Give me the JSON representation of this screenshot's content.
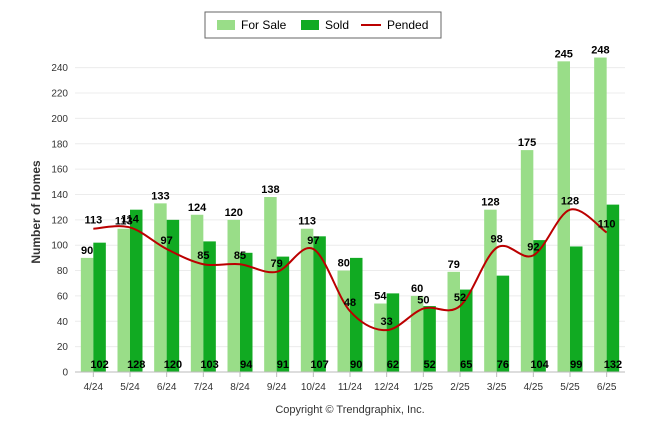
{
  "chart_data": {
    "type": "bar",
    "categories": [
      "4/24",
      "5/24",
      "6/24",
      "7/24",
      "8/24",
      "9/24",
      "10/24",
      "11/24",
      "12/24",
      "1/25",
      "2/25",
      "3/25",
      "4/25",
      "5/25",
      "6/25"
    ],
    "series": [
      {
        "name": "For Sale",
        "type": "bar",
        "color": "#99dd88",
        "values": [
          90,
          113,
          133,
          124,
          120,
          138,
          113,
          80,
          54,
          60,
          79,
          128,
          175,
          245,
          248
        ]
      },
      {
        "name": "Sold",
        "type": "bar",
        "color": "#11aa22",
        "values": [
          102,
          128,
          120,
          103,
          94,
          91,
          107,
          90,
          62,
          52,
          65,
          76,
          104,
          99,
          132
        ]
      },
      {
        "name": "Pended",
        "type": "line",
        "color": "#bb0000",
        "values": [
          113,
          114,
          97,
          85,
          85,
          79,
          97,
          48,
          33,
          50,
          52,
          98,
          92,
          128,
          110
        ]
      }
    ],
    "xlabel": "",
    "ylabel": "Number of Homes",
    "ylim": [
      0,
      250
    ],
    "yticks": [
      0,
      20,
      40,
      60,
      80,
      100,
      120,
      140,
      160,
      180,
      200,
      220,
      240
    ],
    "grid": true,
    "legend": "top-center",
    "footer": "Copyright © Trendgraphix, Inc."
  }
}
